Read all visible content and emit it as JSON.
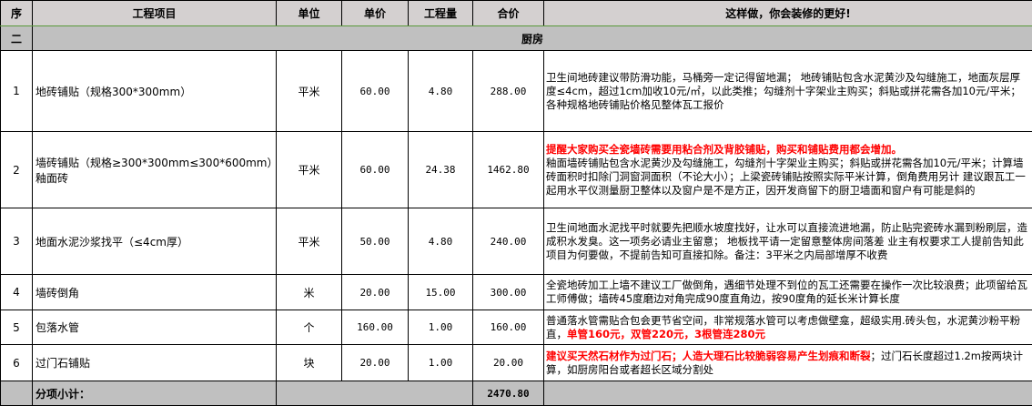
{
  "header": {
    "seq": "序",
    "item": "工程项目",
    "unit": "单位",
    "price": "单价",
    "qty": "工程量",
    "total": "合价",
    "remark": "这样做，你会装修的更好!"
  },
  "section": {
    "seq": "二",
    "title": "厨房"
  },
  "rows": [
    {
      "seq": "1",
      "item": "地砖铺贴（规格300*300mm）",
      "unit": "平米",
      "price": "60.00",
      "qty": "4.80",
      "total": "288.00",
      "remark_red": "",
      "remark": "卫生间地砖建议带防滑功能，马桶旁一定记得留地漏； 地砖铺贴包含水泥黄沙及勾缝施工，地面灰层厚度≤4cm，超过1cm加收10元/㎡，以此类推；勾缝剂十字架业主购买；斜贴或拼花需各加10元/平米；各种规格地砖铺贴价格见整体瓦工报价",
      "remark_red2": ""
    },
    {
      "seq": "2",
      "item": "墙砖铺贴（规格≥300*300mm≤300*600mm）釉面砖",
      "unit": "平米",
      "price": "60.00",
      "qty": "24.38",
      "total": "1462.80",
      "remark_red": "提醒大家购买全瓷墙砖需要用粘合剂及背胶铺贴，购买和铺贴费用都会增加。",
      "remark": "釉面墙砖铺贴包含水泥黄沙及勾缝施工，勾缝剂十字架业主购买；斜贴或拼花需各加10元/平米；计算墙砖面积时扣除门洞窗洞面积（不论大小）；上梁瓷砖铺贴按照实际平米计算，倒角费用另计 建议跟瓦工一起用水平仪测量厨卫整体以及窗户是不是方正，因开发商留下的厨卫墙面和窗户有可能是斜的",
      "remark_red2": ""
    },
    {
      "seq": "3",
      "item": "地面水泥沙浆找平（≤4cm厚）",
      "unit": "平米",
      "price": "50.00",
      "qty": "4.80",
      "total": "240.00",
      "remark_red": "",
      "remark": "卫生间地面水泥找平时就要先把顺水坡度找好，让水可以直接流进地漏，防止贴完瓷砖水漏到粉刷层，造成积水发臭。这一项务必请业主留意； 地板找平请一定留意整体房间落差 业主有权要求工人提前告知此项目为何要做，不提前告知可直接扣除。备注：3平米之内局部增厚不收费",
      "remark_red2": ""
    },
    {
      "seq": "4",
      "item": "墙砖倒角",
      "unit": "米",
      "price": "20.00",
      "qty": "15.00",
      "total": "300.00",
      "remark_red": "",
      "remark": "全瓷地砖加工上墙不建议工厂做倒角，遇细节处理不到位的瓦工还需要在操作一次比较浪费；此项留给瓦工师傅做；墙砖45度磨边对角完成90度直角边，按90度角的延长米计算长度",
      "remark_red2": ""
    },
    {
      "seq": "5",
      "item": "包落水管",
      "unit": "个",
      "price": "160.00",
      "qty": "1.00",
      "total": "160.00",
      "remark_red": "",
      "remark": "普通落水管需贴合包会更节省空间，非常规落水管可以考虑做壁龛，超级实用.砖头包，水泥黄沙粉平粉直，",
      "remark_red2": "单管160元，双管220元，3根管连280元"
    },
    {
      "seq": "6",
      "item": "过门石铺贴",
      "unit": "块",
      "price": "20.00",
      "qty": "1.00",
      "total": "20.00",
      "remark_red": "建议买天然石材作为过门石；人造大理石比较脆弱容易产生划痕和断裂",
      "remark": "；过门石长度超过1.2m按两块计算，如厨房阳台或者超长区域分割处",
      "remark_red2": ""
    }
  ],
  "subtotal": {
    "label": "分项小计：",
    "total": "2470.80"
  },
  "colors": {
    "header_bg": "#d4d0d0",
    "section_bg": "#c0c0c0",
    "highlight": "#ff0000"
  }
}
